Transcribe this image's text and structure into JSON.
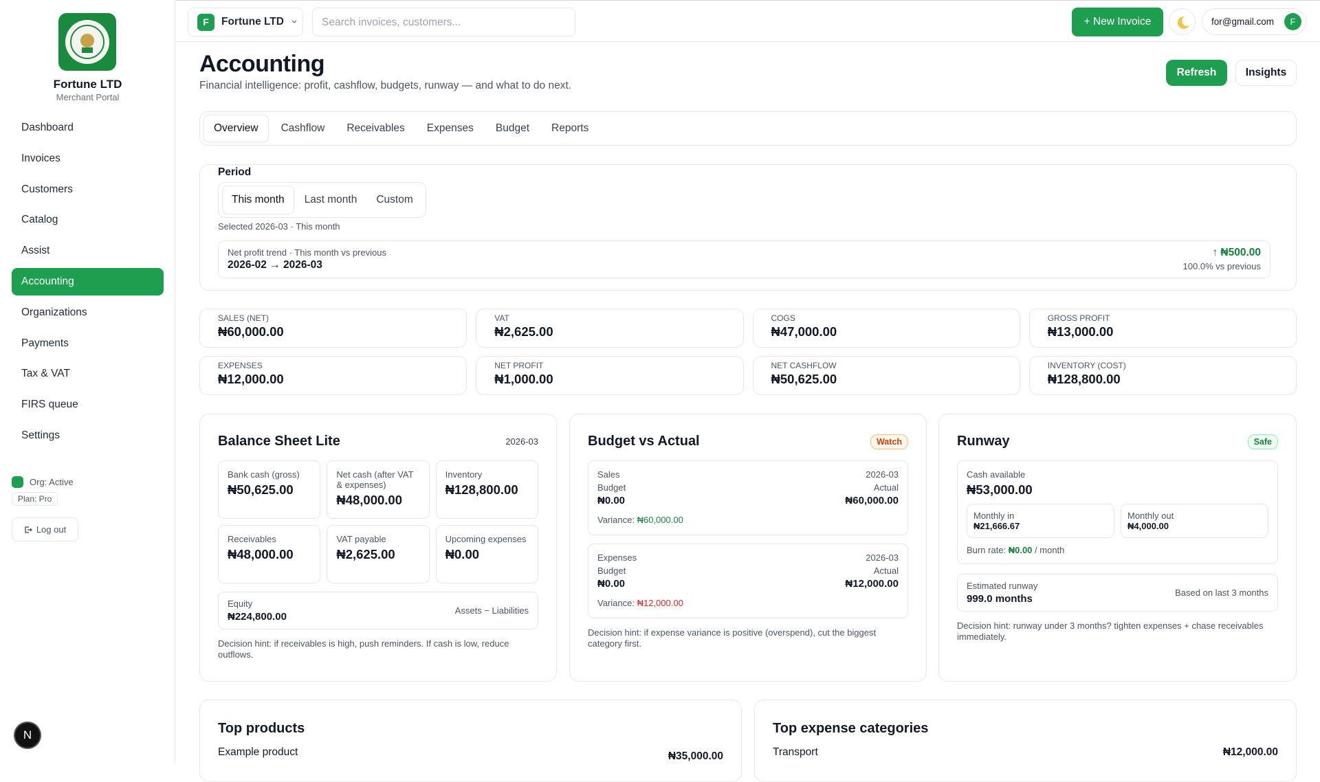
{
  "sidebar": {
    "brand": "Fortune LTD",
    "portal": "Merchant Portal",
    "nav": [
      "Dashboard",
      "Invoices",
      "Customers",
      "Catalog",
      "Assist",
      "Accounting",
      "Organizations",
      "Payments",
      "Tax & VAT",
      "FIRS queue",
      "Settings"
    ],
    "org_status": "Org: Active",
    "plan": "Plan: Pro",
    "logout": "Log out",
    "dev_badge": "N"
  },
  "topbar": {
    "org_initial": "F",
    "org_name": "Fortune LTD",
    "search": "Search invoices, customers...",
    "new_invoice": "+ New Invoice",
    "user_email": "for@gmail.com",
    "user_initial": "F"
  },
  "header": {
    "title": "Accounting",
    "subtitle": "Financial intelligence: profit, cashflow, budgets, runway — and what to do next.",
    "refresh": "Refresh",
    "insights": "Insights"
  },
  "tabs": [
    "Overview",
    "Cashflow",
    "Receivables",
    "Expenses",
    "Budget",
    "Reports"
  ],
  "period": {
    "label": "Period",
    "options": [
      "This month",
      "Last month",
      "Custom"
    ],
    "selected": "Selected 2026-03 · This month",
    "trend_label": "Net profit trend · This month vs previous",
    "trend_range": "2026-02 → 2026-03",
    "trend_value": "↑ ₦500.00",
    "trend_change": "100.0% vs previous"
  },
  "kpis": [
    {
      "label": "SALES (NET)",
      "value": "₦60,000.00"
    },
    {
      "label": "VAT",
      "value": "₦2,625.00"
    },
    {
      "label": "COGS",
      "value": "₦47,000.00"
    },
    {
      "label": "GROSS PROFIT",
      "value": "₦13,000.00"
    },
    {
      "label": "EXPENSES",
      "value": "₦12,000.00"
    },
    {
      "label": "NET PROFIT",
      "value": "₦1,000.00"
    },
    {
      "label": "NET CASHFLOW",
      "value": "₦50,625.00"
    },
    {
      "label": "INVENTORY (COST)",
      "value": "₦128,800.00"
    }
  ],
  "balance_sheet": {
    "title": "Balance Sheet Lite",
    "period": "2026-03",
    "items": [
      {
        "label": "Bank cash (gross)",
        "value": "₦50,625.00"
      },
      {
        "label": "Net cash (after VAT & expenses)",
        "value": "₦48,000.00"
      },
      {
        "label": "Inventory",
        "value": "₦128,800.00"
      },
      {
        "label": "Receivables",
        "value": "₦48,000.00"
      },
      {
        "label": "VAT payable",
        "value": "₦2,625.00"
      },
      {
        "label": "Upcoming expenses",
        "value": "₦0.00"
      }
    ],
    "equity_label": "Equity",
    "equity_value": "₦224,800.00",
    "equity_note": "Assets − Liabilities",
    "hint": "Decision hint: if receivables is high, push reminders. If cash is low, reduce outflows."
  },
  "budget": {
    "title": "Budget vs Actual",
    "status": "Watch",
    "rows": [
      {
        "name": "Sales",
        "period": "2026-03",
        "budget_label": "Budget",
        "budget": "₦0.00",
        "actual_label": "Actual",
        "actual": "₦60,000.00",
        "variance_label": "Variance:",
        "variance": "₦60,000.00"
      },
      {
        "name": "Expenses",
        "period": "2026-03",
        "budget_label": "Budget",
        "budget": "₦0.00",
        "actual_label": "Actual",
        "actual": "₦12,000.00",
        "variance_label": "Variance:",
        "variance": "₦12,000.00"
      }
    ],
    "hint": "Decision hint: if expense variance is positive (overspend), cut the biggest category first."
  },
  "runway": {
    "title": "Runway",
    "status": "Safe",
    "cash_label": "Cash available",
    "cash": "₦53,000.00",
    "monthly_in_label": "Monthly in",
    "monthly_in": "₦21,666.67",
    "monthly_out_label": "Monthly out",
    "monthly_out": "₦4,000.00",
    "burn_label": "Burn rate:",
    "burn": "₦0.00",
    "burn_unit": "/ month",
    "estimate_label": "Estimated runway",
    "estimate": "999.0 months",
    "estimate_note": "Based on last 3 months",
    "hint": "Decision hint: runway under 3 months? tighten expenses + chase receivables immediately."
  },
  "top_products": {
    "title": "Top products",
    "items": [
      {
        "name": "Example product",
        "value": "₦35,000.00"
      }
    ]
  },
  "top_expenses": {
    "title": "Top expense categories",
    "items": [
      {
        "name": "Transport",
        "value": "₦12,000.00"
      }
    ]
  }
}
